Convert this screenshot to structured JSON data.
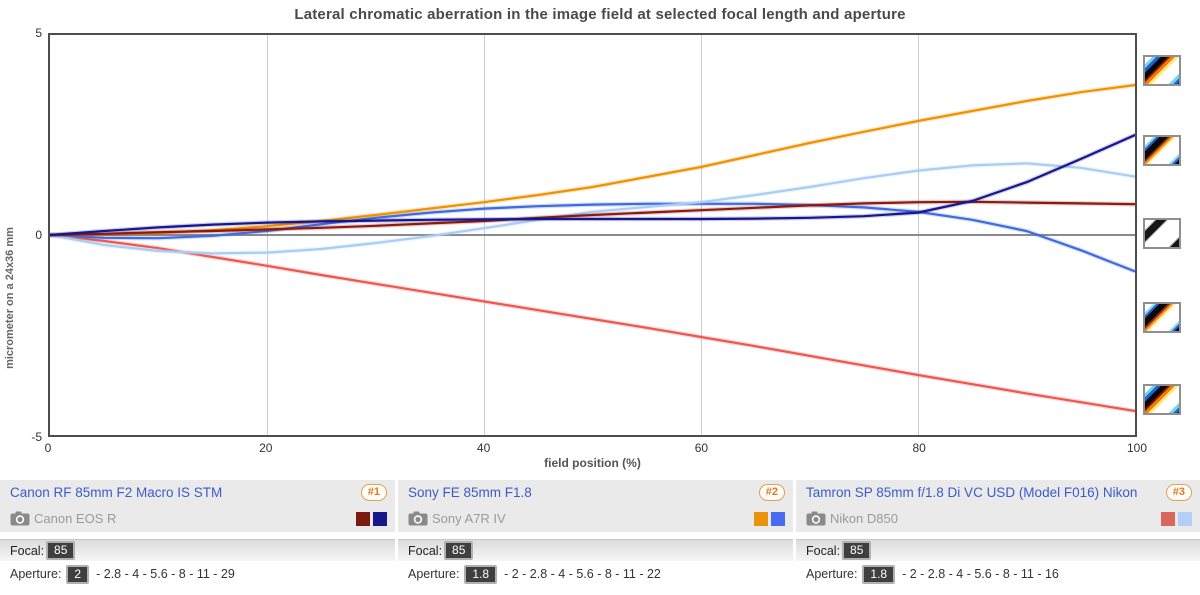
{
  "title": "Lateral chromatic aberration in the image field at selected focal length and aperture",
  "chart_data": {
    "type": "line",
    "title": "Lateral chromatic aberration in the image field at selected focal length and aperture",
    "xlabel": "field position (%)",
    "ylabel": "micrometer on a 24x36 mm",
    "xlim": [
      0,
      100
    ],
    "ylim": [
      -5,
      5
    ],
    "grid": "vertical gridlines at 20/40/60/80, horizontal zero line",
    "x_tick_labels": [
      "0",
      "20",
      "40",
      "60",
      "80",
      "100"
    ],
    "y_tick_labels": [
      "5",
      "0",
      "-5"
    ],
    "x": [
      0,
      5,
      10,
      15,
      20,
      25,
      30,
      35,
      40,
      45,
      50,
      55,
      60,
      65,
      70,
      75,
      80,
      85,
      90,
      95,
      100
    ],
    "series": [
      {
        "id": "tamron-red",
        "name": "Tamron SP 85mm f/1.8 Di VC USD (Model F016) Nikon — red channel",
        "color": "#f0564e",
        "values": [
          0,
          -0.15,
          -0.33,
          -0.55,
          -0.77,
          -1.0,
          -1.22,
          -1.44,
          -1.66,
          -1.88,
          -2.1,
          -2.32,
          -2.55,
          -2.78,
          -3.02,
          -3.26,
          -3.5,
          -3.73,
          -3.96,
          -4.18,
          -4.4
        ]
      },
      {
        "id": "sony-blue",
        "name": "Sony FE 85mm F1.8 — blue channel",
        "color": "#3f6be0",
        "values": [
          0,
          -0.07,
          -0.08,
          -0.02,
          0.1,
          0.27,
          0.43,
          0.56,
          0.66,
          0.72,
          0.76,
          0.78,
          0.78,
          0.78,
          0.75,
          0.69,
          0.58,
          0.38,
          0.1,
          -0.38,
          -0.91
        ]
      },
      {
        "id": "tamron-lightblue",
        "name": "Tamron SP 85mm f/1.8 Di VC USD (Model F016) Nikon — blue channel",
        "color": "#a9cdf5",
        "values": [
          0,
          -0.25,
          -0.4,
          -0.46,
          -0.44,
          -0.35,
          -0.2,
          -0.03,
          0.17,
          0.38,
          0.58,
          0.7,
          0.82,
          1.0,
          1.2,
          1.42,
          1.61,
          1.74,
          1.79,
          1.68,
          1.46
        ]
      },
      {
        "id": "sony-orange",
        "name": "Sony FE 85mm F1.8 — red channel",
        "color": "#f29100",
        "values": [
          0,
          0.02,
          0.05,
          0.12,
          0.22,
          0.35,
          0.5,
          0.66,
          0.82,
          1.0,
          1.2,
          1.45,
          1.7,
          2.0,
          2.3,
          2.58,
          2.85,
          3.1,
          3.35,
          3.57,
          3.75
        ]
      },
      {
        "id": "canon-darkred",
        "name": "Canon RF 85mm F2 Macro IS STM — red channel",
        "color": "#8b1b10",
        "values": [
          0,
          0.03,
          0.07,
          0.1,
          0.14,
          0.18,
          0.23,
          0.29,
          0.35,
          0.43,
          0.5,
          0.56,
          0.62,
          0.68,
          0.74,
          0.79,
          0.82,
          0.83,
          0.81,
          0.79,
          0.77
        ]
      },
      {
        "id": "canon-navy",
        "name": "Canon RF 85mm F2 Macro IS STM — blue channel",
        "color": "#17178f",
        "values": [
          0,
          0.1,
          0.19,
          0.26,
          0.31,
          0.34,
          0.36,
          0.38,
          0.39,
          0.4,
          0.4,
          0.4,
          0.4,
          0.41,
          0.43,
          0.47,
          0.56,
          0.85,
          1.32,
          1.9,
          2.5
        ]
      }
    ]
  },
  "thumbnails": [
    "strong",
    "moderate",
    "none",
    "moderate",
    "strong"
  ],
  "legend": {
    "focal_label": "Focal:",
    "aperture_label": "Aperture:",
    "lenses": [
      {
        "name": "Canon RF 85mm F2 Macro IS STM",
        "rank": "#1",
        "camera": "Canon EOS R",
        "swatches": [
          "#7b1b10",
          "#17178c"
        ],
        "focal": "85",
        "aperture_selected": "2",
        "aperture_rest": "- 2.8 - 4 - 5.6 - 8 - 11 - 29"
      },
      {
        "name": "Sony FE 85mm F1.8",
        "rank": "#2",
        "camera": "Sony A7R IV",
        "swatches": [
          "#e8940c",
          "#4a6af0"
        ],
        "focal": "85",
        "aperture_selected": "1.8",
        "aperture_rest": "- 2 - 2.8 - 4 - 5.6 - 8 - 11 - 22"
      },
      {
        "name": "Tamron SP 85mm f/1.8 Di VC USD (Model F016) Nikon",
        "rank": "#3",
        "camera": "Nikon D850",
        "swatches": [
          "#d9655c",
          "#b5cdf7"
        ],
        "focal": "85",
        "aperture_selected": "1.8",
        "aperture_rest": "- 2 - 2.8 - 4 - 5.6 - 8 - 11 - 16"
      }
    ]
  }
}
